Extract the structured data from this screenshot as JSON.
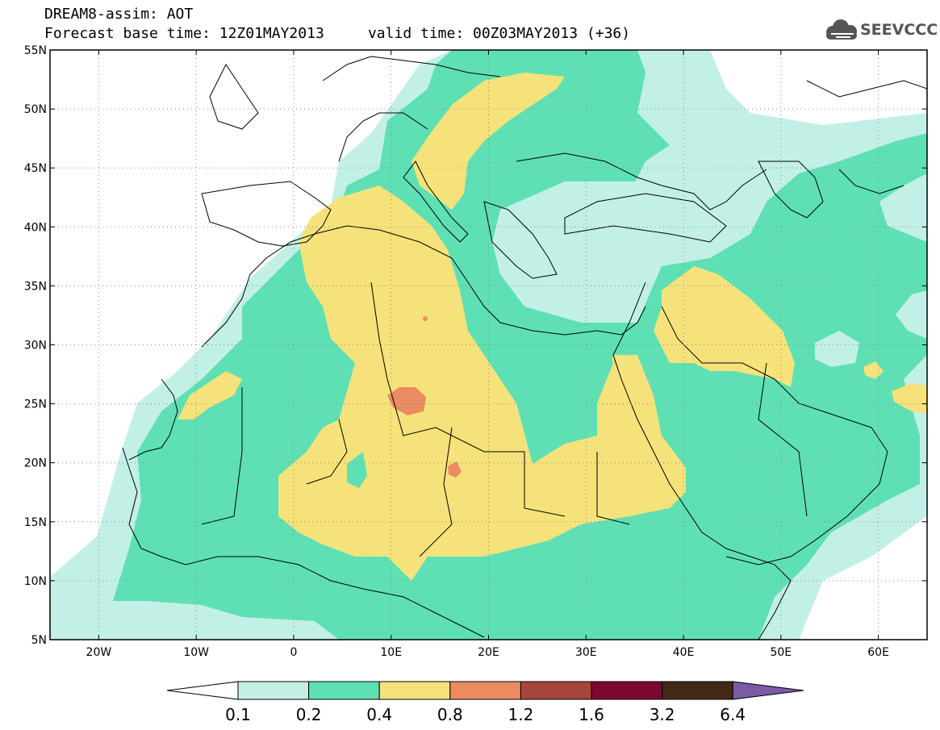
{
  "header": {
    "line1": "DREAM8-assim: AOT",
    "line2": "Forecast base time: 12Z01MAY2013     valid time: 00Z03MAY2013 (+36)"
  },
  "logo": {
    "text": "SEEVCCC",
    "icon": "cloud-icon"
  },
  "map": {
    "lon_range": [
      -25,
      65
    ],
    "lat_range": [
      5,
      55
    ],
    "x_ticks": [
      {
        "lon": -20,
        "label": "20W"
      },
      {
        "lon": -10,
        "label": "10W"
      },
      {
        "lon": 0,
        "label": "0"
      },
      {
        "lon": 10,
        "label": "10E"
      },
      {
        "lon": 20,
        "label": "20E"
      },
      {
        "lon": 30,
        "label": "30E"
      },
      {
        "lon": 40,
        "label": "40E"
      },
      {
        "lon": 50,
        "label": "50E"
      },
      {
        "lon": 60,
        "label": "60E"
      }
    ],
    "y_ticks": [
      {
        "lat": 55,
        "label": "55N"
      },
      {
        "lat": 50,
        "label": "50N"
      },
      {
        "lat": 45,
        "label": "45N"
      },
      {
        "lat": 40,
        "label": "40N"
      },
      {
        "lat": 35,
        "label": "35N"
      },
      {
        "lat": 30,
        "label": "30N"
      },
      {
        "lat": 25,
        "label": "25N"
      },
      {
        "lat": 20,
        "label": "20N"
      },
      {
        "lat": 15,
        "label": "15N"
      },
      {
        "lat": 10,
        "label": "10N"
      },
      {
        "lat": 5,
        "label": "5N"
      }
    ],
    "grid": true
  },
  "colorbar": {
    "labels": [
      "0.1",
      "0.2",
      "0.4",
      "0.8",
      "1.2",
      "1.6",
      "3.2",
      "6.4"
    ],
    "colors": {
      "below": "#ffffff",
      "bins": [
        "#c2f0e6",
        "#5ee0b4",
        "#f6e27a",
        "#ea8b62",
        "#a8453a",
        "#7d0930",
        "#432a17"
      ],
      "above": "#7b5aa6"
    }
  }
}
